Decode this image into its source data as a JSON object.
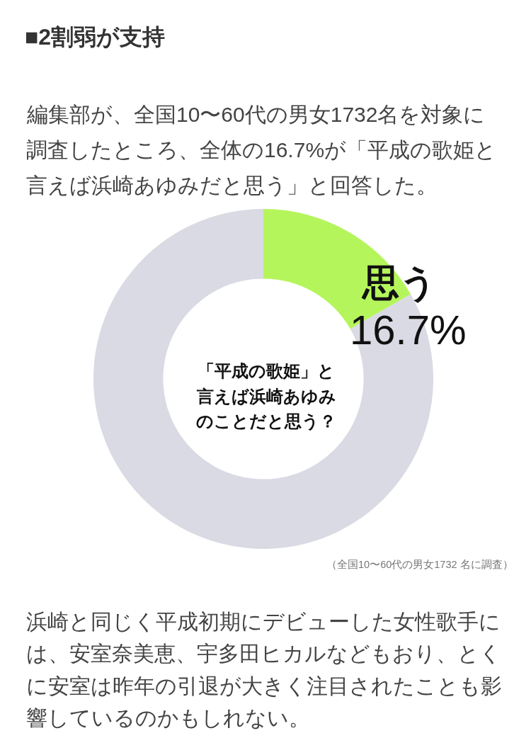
{
  "chart_data": {
    "type": "donut",
    "title": "■2割弱が支持",
    "subtitle": "編集部が、全国10〜60代の男女1732名を対象に調査したところ、全体の16.7%が「平成の歌姫と言えば浜崎あゆみだと思う」と回答した。",
    "categories": [
      "思う",
      null
    ],
    "values": [
      16.7,
      83.3
    ],
    "colors": [
      "#b5f55c",
      "#d9dae3"
    ],
    "value_labels": [
      "16.7%",
      null
    ],
    "annotations": [
      "「平成の歌姫」と言えば浜崎あゆみのことだと思う？",
      "（全国10〜60代の男女1732 名に調査）",
      "浜崎と同じく平成初期にデビューした女性歌手には、安室奈美恵、宇多田ヒカルなどもおり、とくに安室は昨年の引退が大きく注目されたことも影響しているのかもしれない。"
    ]
  }
}
